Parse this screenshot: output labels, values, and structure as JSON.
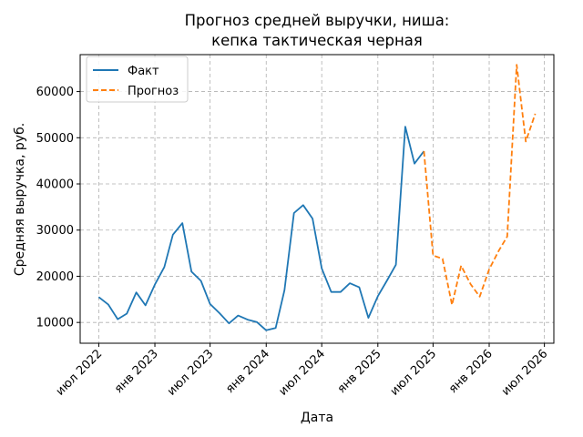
{
  "chart_data": {
    "type": "line",
    "title_line1": "Прогноз средней выручки, ниша:",
    "title_line2": "кепка тактическая черная",
    "xlabel": "Дата",
    "ylabel": "Средняя выручка, руб.",
    "xlim": [
      "2022-05-01",
      "2026-08-01"
    ],
    "ylim": [
      5500,
      68000
    ],
    "x_ticks": [
      {
        "date": "2022-07-01",
        "label": "июл 2022"
      },
      {
        "date": "2023-01-01",
        "label": "янв 2023"
      },
      {
        "date": "2023-07-01",
        "label": "июл 2023"
      },
      {
        "date": "2024-01-01",
        "label": "янв 2024"
      },
      {
        "date": "2024-07-01",
        "label": "июл 2024"
      },
      {
        "date": "2025-01-01",
        "label": "янв 2025"
      },
      {
        "date": "2025-07-01",
        "label": "июл 2025"
      },
      {
        "date": "2026-01-01",
        "label": "янв 2026"
      },
      {
        "date": "2026-07-01",
        "label": "июл 2026"
      }
    ],
    "y_ticks": [
      {
        "value": 10000,
        "label": "10000"
      },
      {
        "value": 20000,
        "label": "20000"
      },
      {
        "value": 30000,
        "label": "30000"
      },
      {
        "value": 40000,
        "label": "40000"
      },
      {
        "value": 50000,
        "label": "50000"
      },
      {
        "value": 60000,
        "label": "60000"
      }
    ],
    "grid": true,
    "legend_position": "top-left",
    "series": [
      {
        "name": "Факт",
        "color": "#1f77b4",
        "style": "solid",
        "points": [
          [
            "2022-07-01",
            15500
          ],
          [
            "2022-08-01",
            13900
          ],
          [
            "2022-09-01",
            10700
          ],
          [
            "2022-10-01",
            11900
          ],
          [
            "2022-11-01",
            16500
          ],
          [
            "2022-12-01",
            13700
          ],
          [
            "2023-01-01",
            18200
          ],
          [
            "2023-02-01",
            22000
          ],
          [
            "2023-03-01",
            29000
          ],
          [
            "2023-04-01",
            31500
          ],
          [
            "2023-05-01",
            21000
          ],
          [
            "2023-06-01",
            19000
          ],
          [
            "2023-07-01",
            14000
          ],
          [
            "2023-08-01",
            12000
          ],
          [
            "2023-09-01",
            9800
          ],
          [
            "2023-10-01",
            11500
          ],
          [
            "2023-11-01",
            10600
          ],
          [
            "2023-12-01",
            10100
          ],
          [
            "2024-01-01",
            8300
          ],
          [
            "2024-02-01",
            8800
          ],
          [
            "2024-03-01",
            17000
          ],
          [
            "2024-04-01",
            33700
          ],
          [
            "2024-05-01",
            35400
          ],
          [
            "2024-06-01",
            32500
          ],
          [
            "2024-07-01",
            21700
          ],
          [
            "2024-08-01",
            16600
          ],
          [
            "2024-09-01",
            16600
          ],
          [
            "2024-10-01",
            18500
          ],
          [
            "2024-11-01",
            17600
          ],
          [
            "2024-12-01",
            11000
          ],
          [
            "2025-01-01",
            15700
          ],
          [
            "2025-02-01",
            19200
          ],
          [
            "2025-03-01",
            22500
          ],
          [
            "2025-04-01",
            52400
          ],
          [
            "2025-05-01",
            44400
          ],
          [
            "2025-06-01",
            47100
          ]
        ]
      },
      {
        "name": "Прогноз",
        "color": "#ff7f0e",
        "style": "dashed",
        "points": [
          [
            "2025-06-01",
            47100
          ],
          [
            "2025-07-01",
            24500
          ],
          [
            "2025-08-01",
            23800
          ],
          [
            "2025-09-01",
            13800
          ],
          [
            "2025-10-01",
            22300
          ],
          [
            "2025-11-01",
            18300
          ],
          [
            "2025-12-01",
            15600
          ],
          [
            "2026-01-01",
            21500
          ],
          [
            "2026-02-01",
            25500
          ],
          [
            "2026-03-01",
            28600
          ],
          [
            "2026-04-01",
            65800
          ],
          [
            "2026-05-01",
            49200
          ],
          [
            "2026-06-01",
            55200
          ]
        ]
      }
    ]
  }
}
